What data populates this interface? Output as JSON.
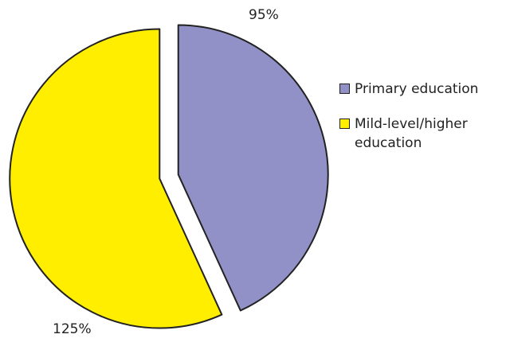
{
  "chart_data": {
    "type": "pie",
    "categories": [
      "Primary education",
      "Mild-level/higher education"
    ],
    "values": [
      95,
      125
    ],
    "data_labels": [
      "95%",
      "125%"
    ],
    "colors": [
      "#9191c8",
      "#ffee00"
    ],
    "exploded": true,
    "legend_position": "right",
    "title": ""
  },
  "legend": {
    "items": [
      {
        "label": "Primary education",
        "color": "#9191c8"
      },
      {
        "label": "Mild-level/higher education",
        "color": "#ffee00"
      }
    ]
  }
}
